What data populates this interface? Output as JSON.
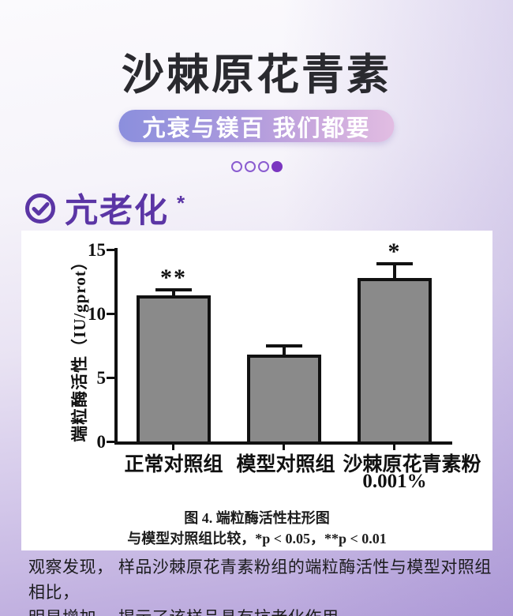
{
  "header": {
    "title": "沙棘原花青素",
    "badge_label": "亢衰与镁百 我们都要"
  },
  "pagination": {
    "dot_count": 4,
    "active_index": 3
  },
  "section": {
    "heading": "亢老化",
    "heading_mark": "*"
  },
  "chart_data": {
    "type": "bar",
    "title": "图 4. 端粒酶活性柱形图",
    "note": "与模型对照组比较，*p < 0.05，**p < 0.01",
    "ylabel": "端粒酶活性（IU/gprot）",
    "ylim": [
      0,
      15
    ],
    "yticks": [
      0,
      5,
      10,
      15
    ],
    "categories": [
      {
        "label": "正常对照组",
        "sublabel": ""
      },
      {
        "label": "模型对照组",
        "sublabel": ""
      },
      {
        "label": "沙棘原花青素粉",
        "sublabel": "0.001%"
      }
    ],
    "values": [
      11.4,
      6.8,
      12.8
    ],
    "errors": [
      0.6,
      0.8,
      1.2
    ],
    "significance": [
      "**",
      "",
      "*"
    ],
    "grid": false,
    "legend": false,
    "bar_color": "#8a8a8a",
    "axis_color": "#111111"
  },
  "footer": {
    "line1": "观察发现， 样品沙棘原花青素粉组的端粒酶活性与模型对照组相比，",
    "line2": "明显增加， 揭示了该样品具有抗老化作用。"
  },
  "colors": {
    "accent_purple": "#5b35a5",
    "dot_purple": "#7b36c0",
    "badge_gradient_start": "#8b8fdd",
    "badge_gradient_end": "#e2bde2",
    "bar_fill": "#8a8a8a"
  }
}
